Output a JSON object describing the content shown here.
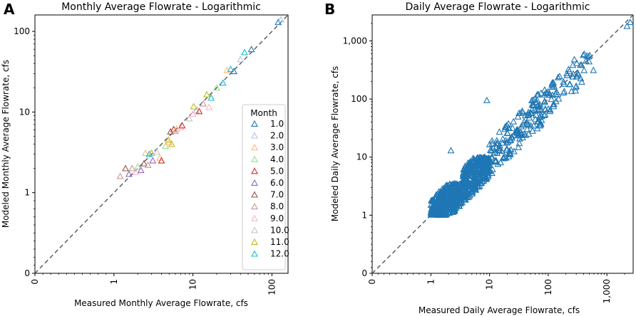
{
  "chart_data": [
    {
      "panel": "A",
      "type": "scatter",
      "title": "Monthly Average Flowrate - Logarithmic",
      "xlabel": "Measured Monthly Average Flowrate, cfs",
      "ylabel": "Modeled Monthly Average Flowrate, cfs",
      "scale": "symlog",
      "xlim": [
        0,
        160
      ],
      "ylim": [
        0,
        160
      ],
      "xticks": [
        "0",
        "1",
        "10",
        "100"
      ],
      "yticks": [
        "0",
        "1",
        "10",
        "100"
      ],
      "reference_line": "1:1 dashed",
      "legend": {
        "title": "Month",
        "position": "center-right",
        "entries": [
          {
            "label": "1.0",
            "color": "#1f77b4"
          },
          {
            "label": "2.0",
            "color": "#aec7e8"
          },
          {
            "label": "3.0",
            "color": "#ffbb78"
          },
          {
            "label": "4.0",
            "color": "#98df8a"
          },
          {
            "label": "5.0",
            "color": "#d62728"
          },
          {
            "label": "6.0",
            "color": "#9467bd"
          },
          {
            "label": "7.0",
            "color": "#8c564b"
          },
          {
            "label": "8.0",
            "color": "#c49c94"
          },
          {
            "label": "9.0",
            "color": "#f7b6d2"
          },
          {
            "label": "10.0",
            "color": "#c7c7c7"
          },
          {
            "label": "11.0",
            "color": "#bcbd22"
          },
          {
            "label": "12.0",
            "color": "#17becf"
          }
        ]
      },
      "points": [
        {
          "x": 1.2,
          "y": 1.6,
          "month": 8
        },
        {
          "x": 1.4,
          "y": 2.0,
          "month": 7
        },
        {
          "x": 1.55,
          "y": 1.7,
          "month": 6
        },
        {
          "x": 1.7,
          "y": 2.0,
          "month": 8
        },
        {
          "x": 1.9,
          "y": 1.8,
          "month": 9
        },
        {
          "x": 2.0,
          "y": 2.1,
          "month": 4
        },
        {
          "x": 2.2,
          "y": 1.9,
          "month": 6
        },
        {
          "x": 2.4,
          "y": 2.3,
          "month": 7
        },
        {
          "x": 2.5,
          "y": 3.1,
          "month": 3
        },
        {
          "x": 2.7,
          "y": 2.2,
          "month": 8
        },
        {
          "x": 2.8,
          "y": 3.0,
          "month": 12
        },
        {
          "x": 3.0,
          "y": 3.1,
          "month": 11
        },
        {
          "x": 3.1,
          "y": 2.5,
          "month": 6
        },
        {
          "x": 3.5,
          "y": 3.2,
          "month": 10
        },
        {
          "x": 3.8,
          "y": 2.7,
          "month": 3
        },
        {
          "x": 4.0,
          "y": 2.5,
          "month": 5
        },
        {
          "x": 4.5,
          "y": 3.8,
          "month": 4
        },
        {
          "x": 4.9,
          "y": 4.5,
          "month": 11
        },
        {
          "x": 5.0,
          "y": 4.2,
          "month": 3
        },
        {
          "x": 5.2,
          "y": 5.7,
          "month": 7
        },
        {
          "x": 5.4,
          "y": 4.0,
          "month": 11
        },
        {
          "x": 5.7,
          "y": 6.1,
          "month": 5
        },
        {
          "x": 6.0,
          "y": 5.8,
          "month": 8
        },
        {
          "x": 6.2,
          "y": 6.2,
          "month": 3
        },
        {
          "x": 7.0,
          "y": 6.5,
          "month": 9
        },
        {
          "x": 7.3,
          "y": 6.8,
          "month": 5
        },
        {
          "x": 9.0,
          "y": 8.3,
          "month": 10
        },
        {
          "x": 10.0,
          "y": 9.5,
          "month": 9
        },
        {
          "x": 10.2,
          "y": 11.7,
          "month": 11
        },
        {
          "x": 11.0,
          "y": 10.5,
          "month": 10
        },
        {
          "x": 12.0,
          "y": 10.2,
          "month": 5
        },
        {
          "x": 13.5,
          "y": 12.7,
          "month": 8
        },
        {
          "x": 15.0,
          "y": 16.5,
          "month": 11
        },
        {
          "x": 16.0,
          "y": 11.5,
          "month": 9
        },
        {
          "x": 17.0,
          "y": 15.0,
          "month": 12
        },
        {
          "x": 20.0,
          "y": 20.0,
          "month": 4
        },
        {
          "x": 24.0,
          "y": 23.0,
          "month": 12
        },
        {
          "x": 27.0,
          "y": 33.0,
          "month": 3
        },
        {
          "x": 30.0,
          "y": 34.0,
          "month": 12
        },
        {
          "x": 33.0,
          "y": 32.0,
          "month": 1
        },
        {
          "x": 40.0,
          "y": 45.0,
          "month": 2
        },
        {
          "x": 45.0,
          "y": 55.0,
          "month": 12
        },
        {
          "x": 55.0,
          "y": 60.0,
          "month": 1
        },
        {
          "x": 120.0,
          "y": 130.0,
          "month": 1
        },
        {
          "x": 130.0,
          "y": 140.0,
          "month": 2
        }
      ]
    },
    {
      "panel": "B",
      "type": "scatter",
      "title": "Daily Average Flowrate - Logarithmic",
      "xlabel": "Measured Daily Average Flowrate, cfs",
      "ylabel": "Modeled Daily Average Flowrate, cfs",
      "scale": "symlog",
      "xlim": [
        0,
        2800
      ],
      "ylim": [
        0,
        2800
      ],
      "xticks": [
        "0",
        "1",
        "10",
        "100",
        "1,000"
      ],
      "yticks": [
        "0",
        "1",
        "10",
        "100",
        "1,000"
      ],
      "reference_line": "1:1 dashed",
      "series_color": "#1f77b4",
      "outliers": [
        {
          "x": 2.2,
          "y": 13.0
        },
        {
          "x": 9.0,
          "y": 95.0
        },
        {
          "x": 2200,
          "y": 1800
        },
        {
          "x": 2500,
          "y": 2100
        }
      ],
      "clusters": [
        {
          "x_range": [
            1.0,
            3.5
          ],
          "y_range": [
            1.0,
            3.5
          ],
          "count": 420
        },
        {
          "x_range": [
            3.5,
            10.0
          ],
          "y_range": [
            1.5,
            10.0
          ],
          "count": 300
        },
        {
          "x_range": [
            10.0,
            100.0
          ],
          "y_range": [
            5.0,
            150.0
          ],
          "count": 160
        },
        {
          "x_range": [
            100.0,
            600.0
          ],
          "y_range": [
            60.0,
            600.0
          ],
          "count": 60
        }
      ]
    }
  ],
  "panels": {
    "a": {
      "letter": "A"
    },
    "b": {
      "letter": "B"
    }
  }
}
